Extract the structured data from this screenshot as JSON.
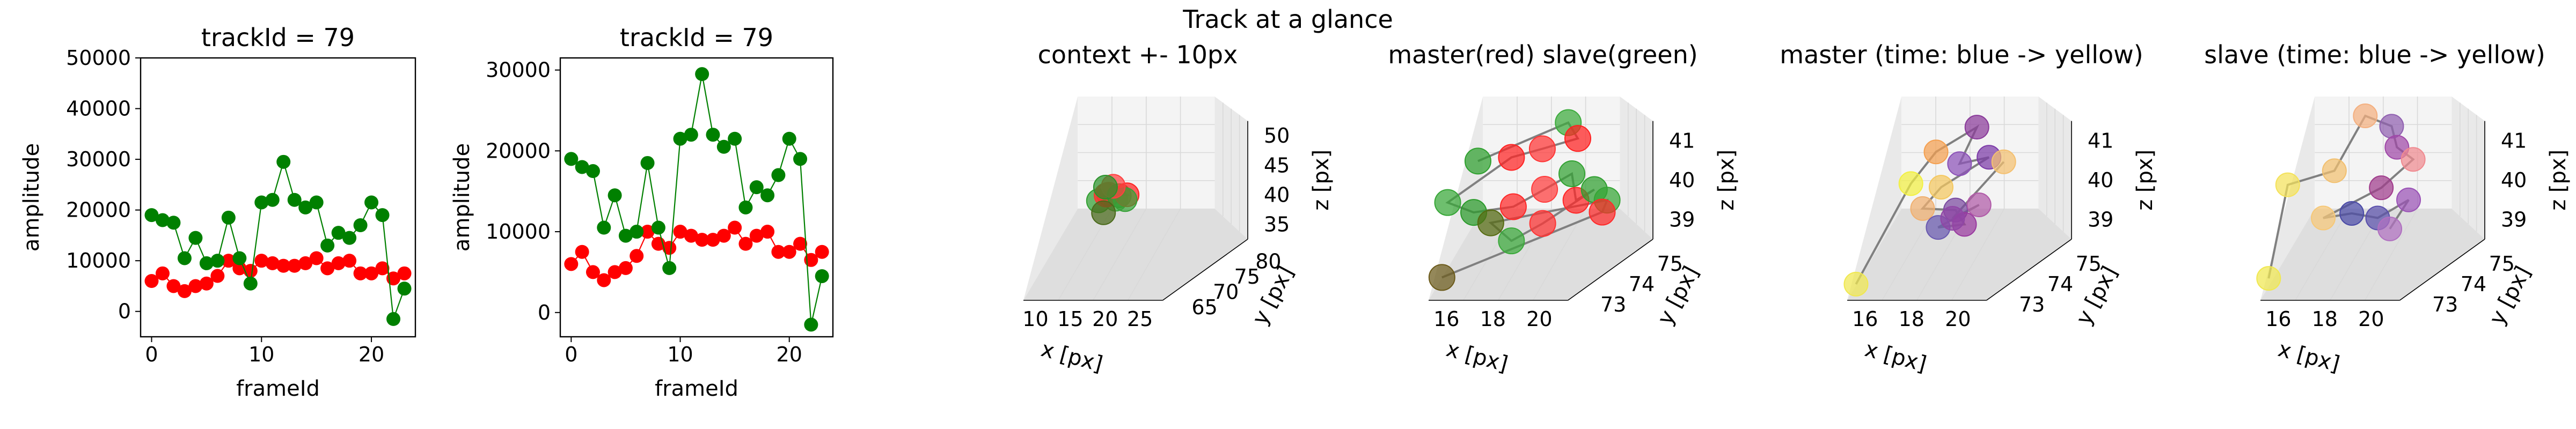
{
  "figure": {
    "suptitle": "Track at a glance"
  },
  "colors": {
    "master": "#ff0000",
    "slave": "#008000",
    "trail": "#808080",
    "pane_light": "#f4f4f4",
    "pane_mid": "#e9e9e9",
    "pane_dark": "#dedede",
    "grid": "#d9d9d9"
  },
  "chart_data": [
    {
      "id": "amp1",
      "type": "line",
      "title": "trackId = 79",
      "xlabel": "frameId",
      "ylabel": "amplitude",
      "xlim": [
        -1,
        24
      ],
      "ylim": [
        -5000,
        50000
      ],
      "xticks": [
        0,
        10,
        20
      ],
      "yticks": [
        0,
        10000,
        20000,
        30000,
        40000,
        50000
      ],
      "categories": [
        0,
        1,
        2,
        3,
        4,
        5,
        6,
        7,
        8,
        9,
        10,
        11,
        12,
        13,
        14,
        15,
        16,
        17,
        18,
        19,
        20,
        21,
        22,
        23
      ],
      "series": [
        {
          "color": "#ff0000",
          "values": [
            6000,
            7500,
            5000,
            4000,
            5000,
            5500,
            7000,
            10000,
            8500,
            8000,
            10000,
            9500,
            9000,
            9000,
            9500,
            10500,
            8500,
            9500,
            10000,
            7500,
            7500,
            8500,
            6500,
            7500
          ]
        },
        {
          "color": "#008000",
          "values": [
            19000,
            18000,
            17500,
            10500,
            14500,
            9500,
            10000,
            18500,
            10500,
            5500,
            21500,
            22000,
            29500,
            22000,
            20500,
            21500,
            13000,
            15500,
            14500,
            17000,
            21500,
            19000,
            -1500,
            4500
          ]
        }
      ]
    },
    {
      "id": "amp2",
      "type": "line",
      "title": "trackId = 79",
      "xlabel": "frameId",
      "ylabel": "amplitude",
      "xlim": [
        -1,
        24
      ],
      "ylim": [
        -3000,
        31500
      ],
      "xticks": [
        0,
        10,
        20
      ],
      "yticks": [
        0,
        10000,
        20000,
        30000
      ],
      "categories": [
        0,
        1,
        2,
        3,
        4,
        5,
        6,
        7,
        8,
        9,
        10,
        11,
        12,
        13,
        14,
        15,
        16,
        17,
        18,
        19,
        20,
        21,
        22,
        23
      ],
      "series": [
        {
          "color": "#ff0000",
          "values": [
            6000,
            7500,
            5000,
            4000,
            5000,
            5500,
            7000,
            10000,
            8500,
            8000,
            10000,
            9500,
            9000,
            9000,
            9500,
            10500,
            8500,
            9500,
            10000,
            7500,
            7500,
            8500,
            6500,
            7500
          ]
        },
        {
          "color": "#008000",
          "values": [
            19000,
            18000,
            17500,
            10500,
            14500,
            9500,
            10000,
            18500,
            10500,
            5500,
            21500,
            22000,
            29500,
            22000,
            20500,
            21500,
            13000,
            15500,
            14500,
            17000,
            21500,
            19000,
            -1500,
            4500
          ]
        }
      ]
    },
    {
      "id": "ctx",
      "type": "scatter",
      "title": "context +- 10px",
      "xlabel": "x [px]",
      "ylabel": "y [px]",
      "zlabel": "z [px]",
      "xticks": [
        "10",
        "15",
        "20",
        "25"
      ],
      "yticks": [
        "65",
        "70",
        "75",
        "80"
      ],
      "zticks": [
        "35",
        "40",
        "45",
        "50"
      ]
    },
    {
      "id": "ms",
      "type": "scatter",
      "title": "master(red) slave(green)",
      "xlabel": "x [px]",
      "ylabel": "y [px]",
      "zlabel": "z [px]",
      "xticks": [
        "16",
        "18",
        "20"
      ],
      "yticks": [
        "73",
        "74",
        "75"
      ],
      "zticks": [
        "39",
        "40",
        "41"
      ]
    },
    {
      "id": "mt",
      "type": "scatter",
      "title": "master (time: blue -> yellow)",
      "xlabel": "x [px]",
      "ylabel": "y [px]",
      "zlabel": "z [px]",
      "xticks": [
        "16",
        "18",
        "20"
      ],
      "yticks": [
        "73",
        "74",
        "75"
      ],
      "zticks": [
        "39",
        "40",
        "41"
      ]
    },
    {
      "id": "st",
      "type": "scatter",
      "title": "slave (time: blue -> yellow)",
      "xlabel": "x [px]",
      "ylabel": "y [px]",
      "zlabel": "z [px]",
      "xticks": [
        "16",
        "18",
        "20"
      ],
      "yticks": [
        "73",
        "74",
        "75"
      ],
      "zticks": [
        "39",
        "40",
        "41"
      ]
    }
  ]
}
